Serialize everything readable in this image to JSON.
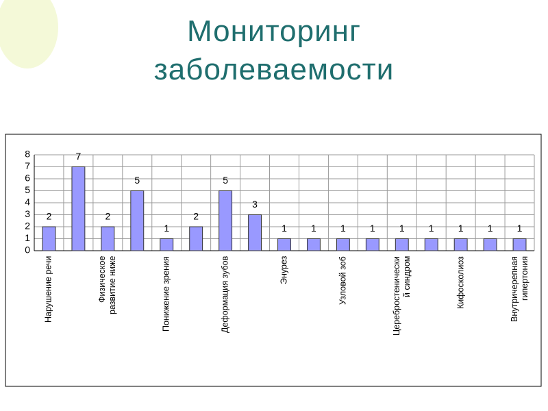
{
  "chart_data": {
    "type": "bar",
    "title": "Мониторинг\nзаболеваемости",
    "categories": [
      "Нарушение речи",
      null,
      "Физическое\nразвитие ниже",
      null,
      "Понижение зрения",
      null,
      "Деформация зубов",
      null,
      "Энурез",
      null,
      "Узловой зоб",
      null,
      "Церебростенически\nй синдром",
      null,
      "Кифосколиоз",
      null,
      "Внутричерепная\nгипертония"
    ],
    "values": [
      2,
      7,
      2,
      5,
      1,
      2,
      5,
      3,
      1,
      1,
      1,
      1,
      1,
      1,
      1,
      1,
      1
    ],
    "color": "#9999ff",
    "ylim": [
      0,
      8
    ],
    "yticks": [
      0,
      1,
      2,
      3,
      4,
      5,
      6,
      7,
      8
    ],
    "grid": true
  }
}
